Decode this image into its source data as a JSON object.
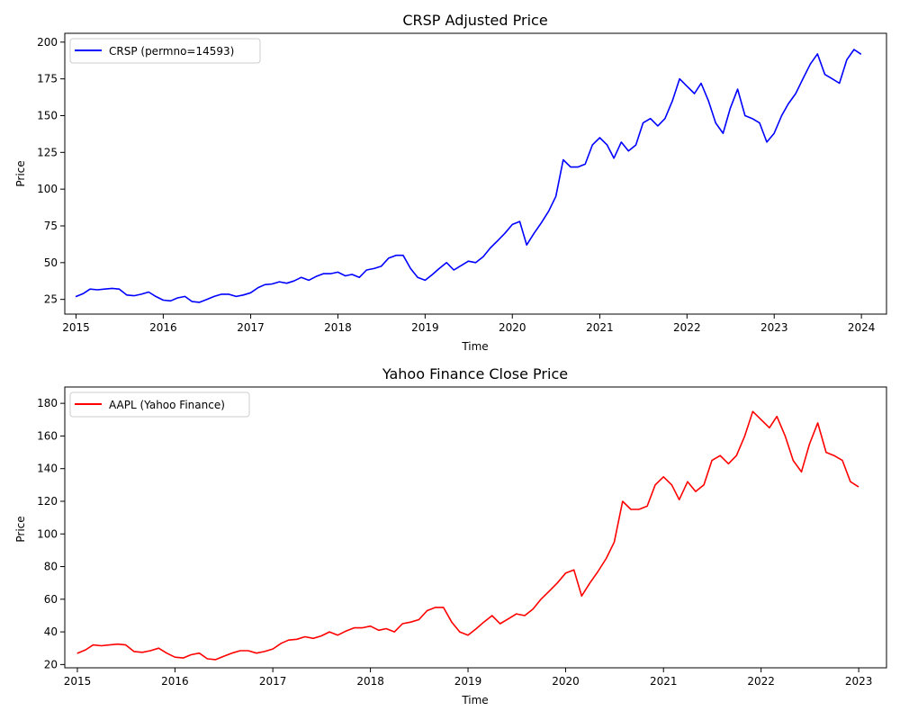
{
  "chart_data": [
    {
      "type": "line",
      "title": "CRSP Adjusted Price",
      "xlabel": "Time",
      "ylabel": "Price",
      "xlim": [
        "2014-11-15",
        "2024-04-15"
      ],
      "ylim": [
        15,
        206
      ],
      "xticks": [
        "2015",
        "2016",
        "2017",
        "2018",
        "2019",
        "2020",
        "2021",
        "2022",
        "2023",
        "2024"
      ],
      "yticks": [
        25,
        50,
        75,
        100,
        125,
        150,
        175,
        200
      ],
      "grid": false,
      "legend_position": "top-left",
      "series": [
        {
          "name": "CRSP (permno=14593)",
          "color": "#0000ff",
          "points": [
            [
              "2015-01-02",
              27
            ],
            [
              "2015-02-01",
              29
            ],
            [
              "2015-03-01",
              32
            ],
            [
              "2015-04-01",
              31.5
            ],
            [
              "2015-05-01",
              32
            ],
            [
              "2015-06-01",
              32.5
            ],
            [
              "2015-07-01",
              32
            ],
            [
              "2015-08-01",
              28
            ],
            [
              "2015-09-01",
              27.5
            ],
            [
              "2015-10-01",
              28.5
            ],
            [
              "2015-11-01",
              30
            ],
            [
              "2015-12-01",
              27
            ],
            [
              "2016-01-01",
              24.5
            ],
            [
              "2016-02-01",
              24
            ],
            [
              "2016-03-01",
              26
            ],
            [
              "2016-04-01",
              27
            ],
            [
              "2016-05-01",
              23.5
            ],
            [
              "2016-06-01",
              23
            ],
            [
              "2016-07-01",
              25
            ],
            [
              "2016-08-01",
              27
            ],
            [
              "2016-09-01",
              28.5
            ],
            [
              "2016-10-01",
              28.5
            ],
            [
              "2016-11-01",
              27
            ],
            [
              "2016-12-01",
              28
            ],
            [
              "2017-01-01",
              29.5
            ],
            [
              "2017-02-01",
              33
            ],
            [
              "2017-03-01",
              35
            ],
            [
              "2017-04-01",
              35.5
            ],
            [
              "2017-05-01",
              37
            ],
            [
              "2017-06-01",
              36
            ],
            [
              "2017-07-01",
              37.5
            ],
            [
              "2017-08-01",
              40
            ],
            [
              "2017-09-01",
              38
            ],
            [
              "2017-10-01",
              40.5
            ],
            [
              "2017-11-01",
              42.5
            ],
            [
              "2017-12-01",
              42.5
            ],
            [
              "2018-01-01",
              43.5
            ],
            [
              "2018-02-01",
              41
            ],
            [
              "2018-03-01",
              42
            ],
            [
              "2018-04-01",
              40
            ],
            [
              "2018-05-01",
              45
            ],
            [
              "2018-06-01",
              46
            ],
            [
              "2018-07-01",
              47.5
            ],
            [
              "2018-08-01",
              53
            ],
            [
              "2018-09-01",
              55
            ],
            [
              "2018-10-01",
              55
            ],
            [
              "2018-11-01",
              46
            ],
            [
              "2018-12-01",
              40
            ],
            [
              "2019-01-01",
              38
            ],
            [
              "2019-02-01",
              42
            ],
            [
              "2019-03-01",
              46
            ],
            [
              "2019-04-01",
              50
            ],
            [
              "2019-05-01",
              45
            ],
            [
              "2019-06-01",
              48
            ],
            [
              "2019-07-01",
              51
            ],
            [
              "2019-08-01",
              50
            ],
            [
              "2019-09-01",
              54
            ],
            [
              "2019-10-01",
              60
            ],
            [
              "2019-11-01",
              65
            ],
            [
              "2019-12-01",
              70
            ],
            [
              "2020-01-01",
              76
            ],
            [
              "2020-02-01",
              78
            ],
            [
              "2020-03-01",
              62
            ],
            [
              "2020-04-01",
              70
            ],
            [
              "2020-05-01",
              77
            ],
            [
              "2020-06-01",
              85
            ],
            [
              "2020-07-01",
              95
            ],
            [
              "2020-08-01",
              120
            ],
            [
              "2020-09-01",
              115
            ],
            [
              "2020-10-01",
              115
            ],
            [
              "2020-11-01",
              117
            ],
            [
              "2020-12-01",
              130
            ],
            [
              "2021-01-01",
              135
            ],
            [
              "2021-02-01",
              130
            ],
            [
              "2021-03-01",
              121
            ],
            [
              "2021-04-01",
              132
            ],
            [
              "2021-05-01",
              126
            ],
            [
              "2021-06-01",
              130
            ],
            [
              "2021-07-01",
              145
            ],
            [
              "2021-08-01",
              148
            ],
            [
              "2021-09-01",
              143
            ],
            [
              "2021-10-01",
              148
            ],
            [
              "2021-11-01",
              160
            ],
            [
              "2021-12-01",
              175
            ],
            [
              "2022-01-01",
              170
            ],
            [
              "2022-02-01",
              165
            ],
            [
              "2022-03-01",
              172
            ],
            [
              "2022-04-01",
              160
            ],
            [
              "2022-05-01",
              145
            ],
            [
              "2022-06-01",
              138
            ],
            [
              "2022-07-01",
              155
            ],
            [
              "2022-08-01",
              168
            ],
            [
              "2022-09-01",
              150
            ],
            [
              "2022-10-01",
              148
            ],
            [
              "2022-11-01",
              145
            ],
            [
              "2022-12-01",
              132
            ],
            [
              "2023-01-01",
              138
            ],
            [
              "2023-02-01",
              150
            ],
            [
              "2023-03-01",
              158
            ],
            [
              "2023-04-01",
              165
            ],
            [
              "2023-05-01",
              175
            ],
            [
              "2023-06-01",
              185
            ],
            [
              "2023-07-01",
              192
            ],
            [
              "2023-08-01",
              178
            ],
            [
              "2023-09-01",
              175
            ],
            [
              "2023-10-01",
              172
            ],
            [
              "2023-11-01",
              188
            ],
            [
              "2023-12-01",
              195
            ],
            [
              "2023-12-29",
              192
            ]
          ]
        }
      ]
    },
    {
      "type": "line",
      "title": "Yahoo Finance Close Price",
      "xlabel": "Time",
      "ylabel": "Price",
      "xlim": [
        "2014-11-15",
        "2023-04-15"
      ],
      "ylim": [
        18,
        190
      ],
      "xticks": [
        "2015",
        "2016",
        "2017",
        "2018",
        "2019",
        "2020",
        "2021",
        "2022",
        "2023"
      ],
      "yticks": [
        20,
        40,
        60,
        80,
        100,
        120,
        140,
        160,
        180
      ],
      "grid": false,
      "legend_position": "top-left",
      "series": [
        {
          "name": "AAPL (Yahoo Finance)",
          "color": "#ff0000",
          "points": [
            [
              "2015-01-02",
              27
            ],
            [
              "2015-02-01",
              29
            ],
            [
              "2015-03-01",
              32
            ],
            [
              "2015-04-01",
              31.5
            ],
            [
              "2015-05-01",
              32
            ],
            [
              "2015-06-01",
              32.5
            ],
            [
              "2015-07-01",
              32
            ],
            [
              "2015-08-01",
              28
            ],
            [
              "2015-09-01",
              27.5
            ],
            [
              "2015-10-01",
              28.5
            ],
            [
              "2015-11-01",
              30
            ],
            [
              "2015-12-01",
              27
            ],
            [
              "2016-01-01",
              24.5
            ],
            [
              "2016-02-01",
              24
            ],
            [
              "2016-03-01",
              26
            ],
            [
              "2016-04-01",
              27
            ],
            [
              "2016-05-01",
              23.5
            ],
            [
              "2016-06-01",
              23
            ],
            [
              "2016-07-01",
              25
            ],
            [
              "2016-08-01",
              27
            ],
            [
              "2016-09-01",
              28.5
            ],
            [
              "2016-10-01",
              28.5
            ],
            [
              "2016-11-01",
              27
            ],
            [
              "2016-12-01",
              28
            ],
            [
              "2017-01-01",
              29.5
            ],
            [
              "2017-02-01",
              33
            ],
            [
              "2017-03-01",
              35
            ],
            [
              "2017-04-01",
              35.5
            ],
            [
              "2017-05-01",
              37
            ],
            [
              "2017-06-01",
              36
            ],
            [
              "2017-07-01",
              37.5
            ],
            [
              "2017-08-01",
              40
            ],
            [
              "2017-09-01",
              38
            ],
            [
              "2017-10-01",
              40.5
            ],
            [
              "2017-11-01",
              42.5
            ],
            [
              "2017-12-01",
              42.5
            ],
            [
              "2018-01-01",
              43.5
            ],
            [
              "2018-02-01",
              41
            ],
            [
              "2018-03-01",
              42
            ],
            [
              "2018-04-01",
              40
            ],
            [
              "2018-05-01",
              45
            ],
            [
              "2018-06-01",
              46
            ],
            [
              "2018-07-01",
              47.5
            ],
            [
              "2018-08-01",
              53
            ],
            [
              "2018-09-01",
              55
            ],
            [
              "2018-10-01",
              55
            ],
            [
              "2018-11-01",
              46
            ],
            [
              "2018-12-01",
              40
            ],
            [
              "2019-01-01",
              38
            ],
            [
              "2019-02-01",
              42
            ],
            [
              "2019-03-01",
              46
            ],
            [
              "2019-04-01",
              50
            ],
            [
              "2019-05-01",
              45
            ],
            [
              "2019-06-01",
              48
            ],
            [
              "2019-07-01",
              51
            ],
            [
              "2019-08-01",
              50
            ],
            [
              "2019-09-01",
              54
            ],
            [
              "2019-10-01",
              60
            ],
            [
              "2019-11-01",
              65
            ],
            [
              "2019-12-01",
              70
            ],
            [
              "2020-01-01",
              76
            ],
            [
              "2020-02-01",
              78
            ],
            [
              "2020-03-01",
              62
            ],
            [
              "2020-04-01",
              70
            ],
            [
              "2020-05-01",
              77
            ],
            [
              "2020-06-01",
              85
            ],
            [
              "2020-07-01",
              95
            ],
            [
              "2020-08-01",
              120
            ],
            [
              "2020-09-01",
              115
            ],
            [
              "2020-10-01",
              115
            ],
            [
              "2020-11-01",
              117
            ],
            [
              "2020-12-01",
              130
            ],
            [
              "2021-01-01",
              135
            ],
            [
              "2021-02-01",
              130
            ],
            [
              "2021-03-01",
              121
            ],
            [
              "2021-04-01",
              132
            ],
            [
              "2021-05-01",
              126
            ],
            [
              "2021-06-01",
              130
            ],
            [
              "2021-07-01",
              145
            ],
            [
              "2021-08-01",
              148
            ],
            [
              "2021-09-01",
              143
            ],
            [
              "2021-10-01",
              148
            ],
            [
              "2021-11-01",
              160
            ],
            [
              "2021-12-01",
              175
            ],
            [
              "2022-01-01",
              170
            ],
            [
              "2022-02-01",
              165
            ],
            [
              "2022-03-01",
              172
            ],
            [
              "2022-04-01",
              160
            ],
            [
              "2022-05-01",
              145
            ],
            [
              "2022-06-01",
              138
            ],
            [
              "2022-07-01",
              155
            ],
            [
              "2022-08-01",
              168
            ],
            [
              "2022-09-01",
              150
            ],
            [
              "2022-10-01",
              148
            ],
            [
              "2022-11-01",
              145
            ],
            [
              "2022-12-01",
              132
            ],
            [
              "2022-12-30",
              129
            ]
          ]
        }
      ]
    }
  ]
}
